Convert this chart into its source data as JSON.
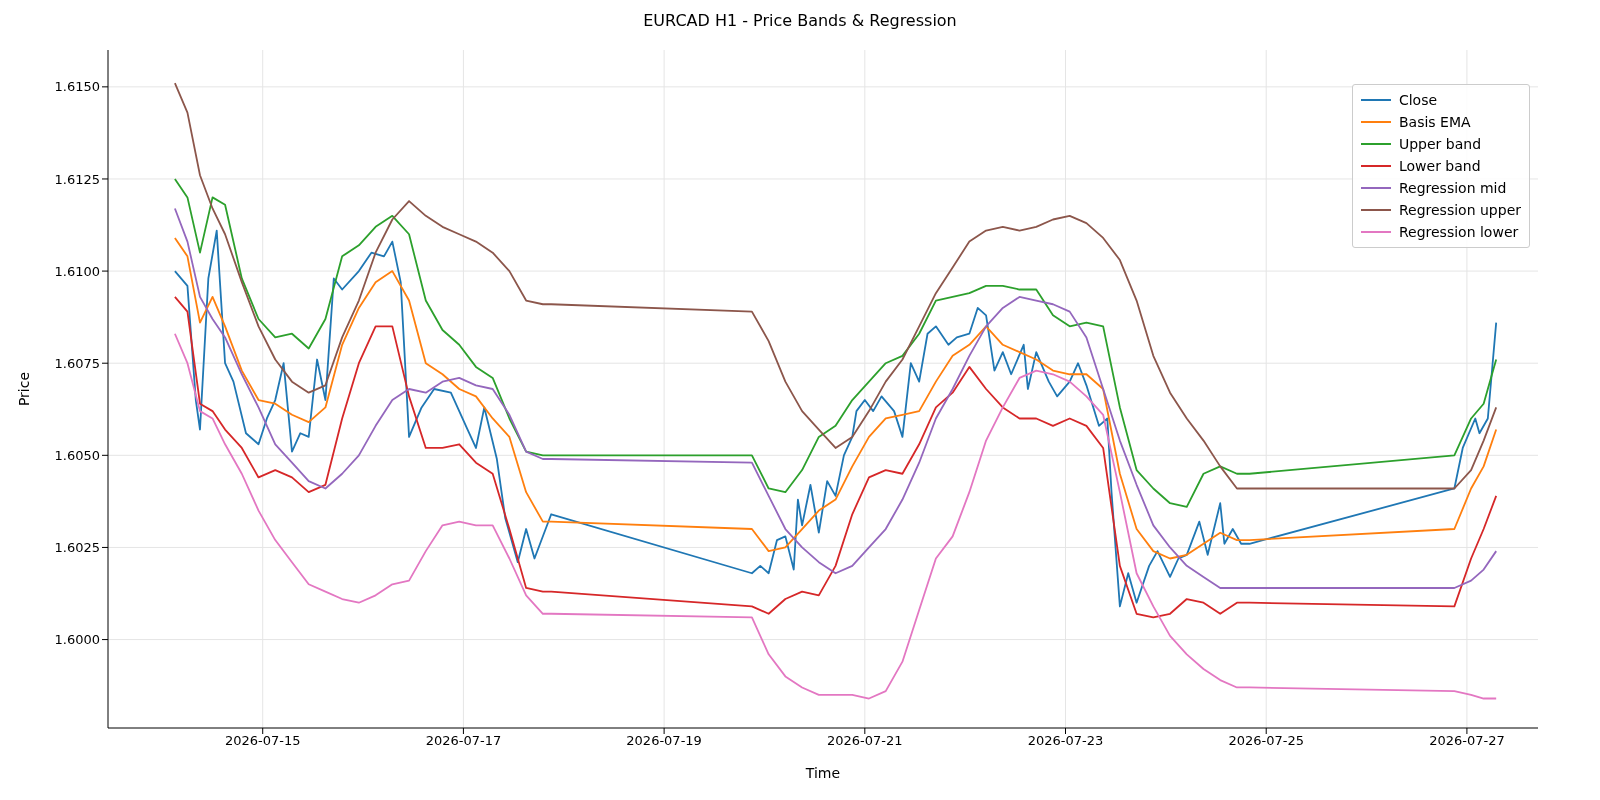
{
  "chart_data": {
    "type": "line",
    "title": "EURCAD H1 - Price Bands & Regression",
    "xlabel": "Time",
    "ylabel": "Price",
    "x": [
      "2026-07-14T03:00",
      "2026-07-14T06:00",
      "2026-07-14T09:00",
      "2026-07-14T12:00",
      "2026-07-14T15:00",
      "2026-07-14T19:00",
      "2026-07-14T23:00",
      "2026-07-15T03:00",
      "2026-07-15T07:00",
      "2026-07-15T11:00",
      "2026-07-15T15:00",
      "2026-07-15T19:00",
      "2026-07-15T23:00",
      "2026-07-16T03:00",
      "2026-07-16T07:00",
      "2026-07-16T11:00",
      "2026-07-16T15:00",
      "2026-07-16T19:00",
      "2026-07-16T23:00",
      "2026-07-17T03:00",
      "2026-07-17T07:00",
      "2026-07-17T11:00",
      "2026-07-17T15:00",
      "2026-07-17T19:00",
      "2026-07-17T21:00",
      "2026-07-19T21:00",
      "2026-07-20T01:00",
      "2026-07-20T05:00",
      "2026-07-20T09:00",
      "2026-07-20T13:00",
      "2026-07-20T17:00",
      "2026-07-20T21:00",
      "2026-07-21T01:00",
      "2026-07-21T05:00",
      "2026-07-21T09:00",
      "2026-07-21T13:00",
      "2026-07-21T17:00",
      "2026-07-21T21:00",
      "2026-07-22T01:00",
      "2026-07-22T05:00",
      "2026-07-22T09:00",
      "2026-07-22T13:00",
      "2026-07-22T17:00",
      "2026-07-22T21:00",
      "2026-07-23T01:00",
      "2026-07-23T05:00",
      "2026-07-23T09:00",
      "2026-07-23T13:00",
      "2026-07-23T17:00",
      "2026-07-23T21:00",
      "2026-07-24T01:00",
      "2026-07-24T05:00",
      "2026-07-24T09:00",
      "2026-07-24T13:00",
      "2026-07-24T17:00",
      "2026-07-24T20:00",
      "2026-07-26T21:00",
      "2026-07-27T01:00",
      "2026-07-27T04:00",
      "2026-07-27T07:00"
    ],
    "series": [
      {
        "name": "Close",
        "color": "#1f77b4",
        "x": [
          "2026-07-14T03:00",
          "2026-07-14T06:00",
          "2026-07-14T08:00",
          "2026-07-14T09:00",
          "2026-07-14T11:00",
          "2026-07-14T13:00",
          "2026-07-14T15:00",
          "2026-07-14T17:00",
          "2026-07-14T20:00",
          "2026-07-14T23:00",
          "2026-07-15T01:00",
          "2026-07-15T03:00",
          "2026-07-15T05:00",
          "2026-07-15T07:00",
          "2026-07-15T09:00",
          "2026-07-15T11:00",
          "2026-07-15T13:00",
          "2026-07-15T15:00",
          "2026-07-15T17:00",
          "2026-07-15T19:00",
          "2026-07-15T23:00",
          "2026-07-16T02:00",
          "2026-07-16T05:00",
          "2026-07-16T07:00",
          "2026-07-16T09:00",
          "2026-07-16T11:00",
          "2026-07-16T14:00",
          "2026-07-16T17:00",
          "2026-07-16T21:00",
          "2026-07-17T01:00",
          "2026-07-17T03:00",
          "2026-07-17T05:00",
          "2026-07-17T08:00",
          "2026-07-17T10:00",
          "2026-07-17T13:00",
          "2026-07-17T15:00",
          "2026-07-17T17:00",
          "2026-07-17T21:00",
          "2026-07-19T21:00",
          "2026-07-19T23:00",
          "2026-07-20T01:00",
          "2026-07-20T03:00",
          "2026-07-20T05:00",
          "2026-07-20T07:00",
          "2026-07-20T08:00",
          "2026-07-20T09:00",
          "2026-07-20T11:00",
          "2026-07-20T13:00",
          "2026-07-20T15:00",
          "2026-07-20T17:00",
          "2026-07-20T19:00",
          "2026-07-20T21:00",
          "2026-07-20T22:00",
          "2026-07-21T00:00",
          "2026-07-21T02:00",
          "2026-07-21T04:00",
          "2026-07-21T07:00",
          "2026-07-21T09:00",
          "2026-07-21T11:00",
          "2026-07-21T13:00",
          "2026-07-21T15:00",
          "2026-07-21T17:00",
          "2026-07-21T20:00",
          "2026-07-21T22:00",
          "2026-07-22T01:00",
          "2026-07-22T03:00",
          "2026-07-22T05:00",
          "2026-07-22T07:00",
          "2026-07-22T09:00",
          "2026-07-22T11:00",
          "2026-07-22T14:00",
          "2026-07-22T15:00",
          "2026-07-22T17:00",
          "2026-07-22T20:00",
          "2026-07-22T22:00",
          "2026-07-23T01:00",
          "2026-07-23T03:00",
          "2026-07-23T05:00",
          "2026-07-23T08:00",
          "2026-07-23T10:00",
          "2026-07-23T11:00",
          "2026-07-23T13:00",
          "2026-07-23T15:00",
          "2026-07-23T17:00",
          "2026-07-23T20:00",
          "2026-07-23T22:00",
          "2026-07-24T01:00",
          "2026-07-24T03:00",
          "2026-07-24T05:00",
          "2026-07-24T08:00",
          "2026-07-24T10:00",
          "2026-07-24T13:00",
          "2026-07-24T14:00",
          "2026-07-24T16:00",
          "2026-07-24T18:00",
          "2026-07-24T20:00",
          "2026-07-26T21:00",
          "2026-07-26T23:00",
          "2026-07-27T02:00",
          "2026-07-27T03:00",
          "2026-07-27T05:00",
          "2026-07-27T07:00"
        ],
        "values": [
          1.61,
          1.6096,
          1.6065,
          1.6057,
          1.6098,
          1.6111,
          1.6075,
          1.607,
          1.6056,
          1.6053,
          1.606,
          1.6065,
          1.6075,
          1.6051,
          1.6056,
          1.6055,
          1.6076,
          1.6065,
          1.6098,
          1.6095,
          1.61,
          1.6105,
          1.6104,
          1.6108,
          1.6097,
          1.6055,
          1.6063,
          1.6068,
          1.6067,
          1.6057,
          1.6052,
          1.6063,
          1.6049,
          1.6033,
          1.6021,
          1.603,
          1.6022,
          1.6034,
          1.6018,
          1.602,
          1.6018,
          1.6027,
          1.6028,
          1.6019,
          1.6038,
          1.6031,
          1.6042,
          1.6029,
          1.6043,
          1.6039,
          1.605,
          1.6055,
          1.6062,
          1.6065,
          1.6062,
          1.6066,
          1.6062,
          1.6055,
          1.6075,
          1.607,
          1.6083,
          1.6085,
          1.608,
          1.6082,
          1.6083,
          1.609,
          1.6088,
          1.6073,
          1.6078,
          1.6072,
          1.608,
          1.6068,
          1.6078,
          1.607,
          1.6066,
          1.607,
          1.6075,
          1.6069,
          1.6058,
          1.606,
          1.604,
          1.6009,
          1.6018,
          1.601,
          1.602,
          1.6024,
          1.6017,
          1.6022,
          1.6023,
          1.6032,
          1.6023,
          1.6037,
          1.6026,
          1.603,
          1.6026,
          1.6026,
          1.6041,
          1.6052,
          1.606,
          1.6056,
          1.606,
          1.6086
        ]
      },
      {
        "name": "Basis EMA",
        "color": "#ff7f0e",
        "values": [
          1.6109,
          1.6104,
          1.6086,
          1.6093,
          1.6085,
          1.6073,
          1.6065,
          1.6064,
          1.6061,
          1.6059,
          1.6063,
          1.608,
          1.609,
          1.6097,
          1.61,
          1.6092,
          1.6075,
          1.6072,
          1.6068,
          1.6066,
          1.606,
          1.6055,
          1.604,
          1.6032,
          1.6032,
          1.603,
          1.6024,
          1.6025,
          1.603,
          1.6035,
          1.6038,
          1.6047,
          1.6055,
          1.606,
          1.6061,
          1.6062,
          1.607,
          1.6077,
          1.608,
          1.6085,
          1.608,
          1.6078,
          1.6076,
          1.6073,
          1.6072,
          1.6072,
          1.6068,
          1.6045,
          1.603,
          1.6024,
          1.6022,
          1.6023,
          1.6026,
          1.6029,
          1.6027,
          1.6027,
          1.603,
          1.6041,
          1.6047,
          1.6057
        ]
      },
      {
        "name": "Upper band",
        "color": "#2ca02c",
        "values": [
          1.6125,
          1.612,
          1.6105,
          1.612,
          1.6118,
          1.6098,
          1.6087,
          1.6082,
          1.6083,
          1.6079,
          1.6087,
          1.6104,
          1.6107,
          1.6112,
          1.6115,
          1.611,
          1.6092,
          1.6084,
          1.608,
          1.6074,
          1.6071,
          1.606,
          1.6051,
          1.605,
          1.605,
          1.605,
          1.6041,
          1.604,
          1.6046,
          1.6055,
          1.6058,
          1.6065,
          1.607,
          1.6075,
          1.6077,
          1.6083,
          1.6092,
          1.6093,
          1.6094,
          1.6096,
          1.6096,
          1.6095,
          1.6095,
          1.6088,
          1.6085,
          1.6086,
          1.6085,
          1.6063,
          1.6046,
          1.6041,
          1.6037,
          1.6036,
          1.6045,
          1.6047,
          1.6045,
          1.6045,
          1.605,
          1.606,
          1.6064,
          1.6076
        ]
      },
      {
        "name": "Lower band",
        "color": "#d62728",
        "values": [
          1.6093,
          1.6089,
          1.6064,
          1.6062,
          1.6057,
          1.6052,
          1.6044,
          1.6046,
          1.6044,
          1.604,
          1.6042,
          1.606,
          1.6075,
          1.6085,
          1.6085,
          1.6066,
          1.6052,
          1.6052,
          1.6053,
          1.6048,
          1.6045,
          1.603,
          1.6014,
          1.6013,
          1.6013,
          1.6009,
          1.6007,
          1.6011,
          1.6013,
          1.6012,
          1.602,
          1.6034,
          1.6044,
          1.6046,
          1.6045,
          1.6053,
          1.6063,
          1.6067,
          1.6074,
          1.6068,
          1.6063,
          1.606,
          1.606,
          1.6058,
          1.606,
          1.6058,
          1.6052,
          1.602,
          1.6007,
          1.6006,
          1.6007,
          1.6011,
          1.601,
          1.6007,
          1.601,
          1.601,
          1.6009,
          1.6022,
          1.603,
          1.6039
        ]
      },
      {
        "name": "Regression mid",
        "color": "#9467bd",
        "values": [
          1.6117,
          1.6108,
          1.6093,
          1.6087,
          1.6082,
          1.6072,
          1.6063,
          1.6053,
          1.6048,
          1.6043,
          1.6041,
          1.6045,
          1.605,
          1.6058,
          1.6065,
          1.6068,
          1.6067,
          1.607,
          1.6071,
          1.6069,
          1.6068,
          1.6061,
          1.6051,
          1.6049,
          1.6049,
          1.6048,
          1.6039,
          1.603,
          1.6025,
          1.6021,
          1.6018,
          1.602,
          1.6025,
          1.603,
          1.6038,
          1.6048,
          1.606,
          1.6068,
          1.6077,
          1.6085,
          1.609,
          1.6093,
          1.6092,
          1.6091,
          1.6089,
          1.6082,
          1.6068,
          1.6054,
          1.6042,
          1.6031,
          1.6025,
          1.602,
          1.6017,
          1.6014,
          1.6014,
          1.6014,
          1.6014,
          1.6016,
          1.6019,
          1.6024
        ]
      },
      {
        "name": "Regression upper",
        "color": "#8c564b",
        "values": [
          1.6151,
          1.6143,
          1.6126,
          1.6117,
          1.611,
          1.6097,
          1.6085,
          1.6076,
          1.607,
          1.6067,
          1.6069,
          1.6082,
          1.6092,
          1.6105,
          1.6114,
          1.6119,
          1.6115,
          1.6112,
          1.611,
          1.6108,
          1.6105,
          1.61,
          1.6092,
          1.6091,
          1.6091,
          1.6089,
          1.6081,
          1.607,
          1.6062,
          1.6057,
          1.6052,
          1.6055,
          1.6062,
          1.607,
          1.6076,
          1.6085,
          1.6094,
          1.6101,
          1.6108,
          1.6111,
          1.6112,
          1.6111,
          1.6112,
          1.6114,
          1.6115,
          1.6113,
          1.6109,
          1.6103,
          1.6092,
          1.6077,
          1.6067,
          1.606,
          1.6054,
          1.6047,
          1.6041,
          1.6041,
          1.6041,
          1.6046,
          1.6054,
          1.6063
        ]
      },
      {
        "name": "Regression lower",
        "color": "#e377c2",
        "values": [
          1.6083,
          1.6075,
          1.6062,
          1.606,
          1.6053,
          1.6045,
          1.6035,
          1.6027,
          1.6021,
          1.6015,
          1.6013,
          1.6011,
          1.601,
          1.6012,
          1.6015,
          1.6016,
          1.6024,
          1.6031,
          1.6032,
          1.6031,
          1.6031,
          1.6022,
          1.6012,
          1.6007,
          1.6007,
          1.6006,
          1.5996,
          1.599,
          1.5987,
          1.5985,
          1.5985,
          1.5985,
          1.5984,
          1.5986,
          1.5994,
          1.6008,
          1.6022,
          1.6028,
          1.604,
          1.6054,
          1.6063,
          1.6071,
          1.6073,
          1.6072,
          1.607,
          1.6066,
          1.6061,
          1.604,
          1.6018,
          1.6009,
          1.6001,
          1.5996,
          1.5992,
          1.5989,
          1.5987,
          1.5987,
          1.5986,
          1.5985,
          1.5984,
          1.5984
        ]
      }
    ],
    "xlim": [
      "2026-07-13T11:00",
      "2026-07-27T17:00"
    ],
    "xticks": [
      "2026-07-15",
      "2026-07-17",
      "2026-07-19",
      "2026-07-21",
      "2026-07-23",
      "2026-07-25",
      "2026-07-27"
    ],
    "ylim": [
      1.5976,
      1.616
    ],
    "yticks": [
      {
        "value": 1.6,
        "label": "1.6000"
      },
      {
        "value": 1.6025,
        "label": "1.6025"
      },
      {
        "value": 1.605,
        "label": "1.6050"
      },
      {
        "value": 1.6075,
        "label": "1.6075"
      },
      {
        "value": 1.61,
        "label": "1.6100"
      },
      {
        "value": 1.6125,
        "label": "1.6125"
      },
      {
        "value": 1.615,
        "label": "1.6150"
      }
    ],
    "grid": true,
    "legend": "top right",
    "marker": "none",
    "line_style": "solid"
  }
}
